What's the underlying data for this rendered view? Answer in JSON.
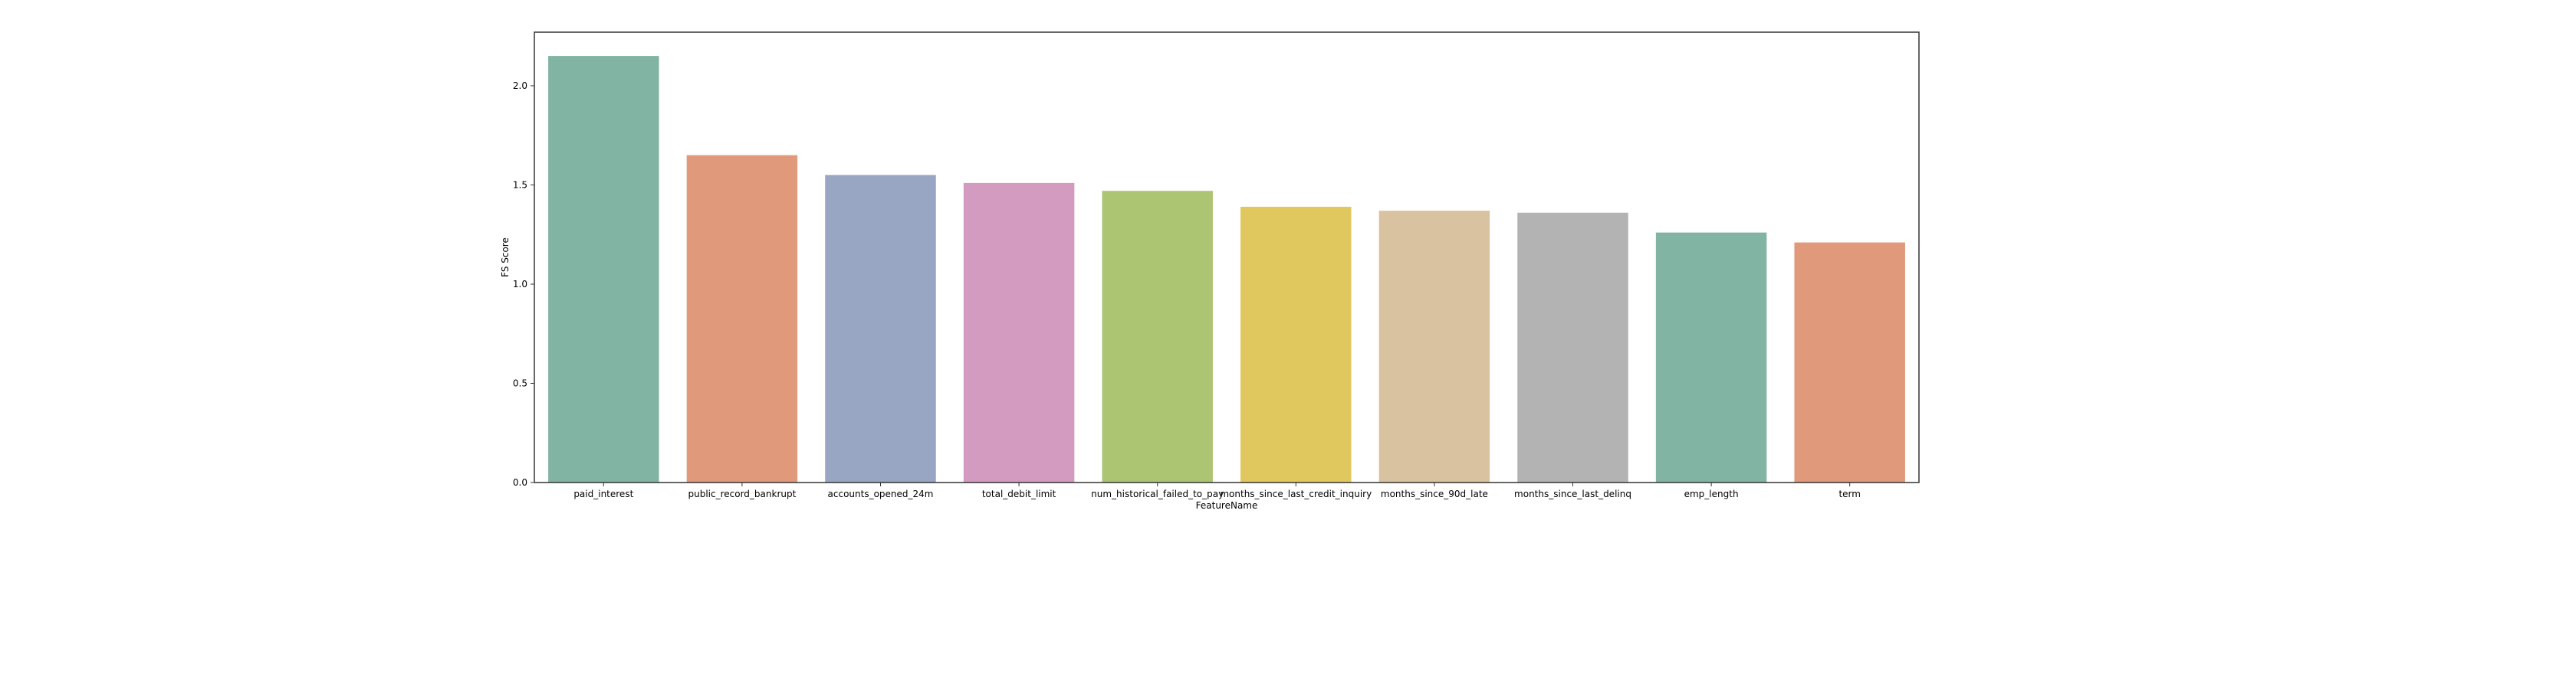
{
  "chart_data": {
    "type": "bar",
    "title": "",
    "xlabel": "FeatureName",
    "ylabel": "FS Score",
    "categories": [
      "paid_interest",
      "public_record_bankrupt",
      "accounts_opened_24m",
      "total_debit_limit",
      "num_historical_failed_to_pay",
      "months_since_last_credit_inquiry",
      "months_since_90d_late",
      "months_since_last_delinq",
      "emp_length",
      "term"
    ],
    "values": [
      2.15,
      1.65,
      1.55,
      1.51,
      1.47,
      1.39,
      1.37,
      1.36,
      1.26,
      1.21
    ],
    "colors": [
      "#81b4a2",
      "#e0997a",
      "#98a5c3",
      "#d39bbf",
      "#abc573",
      "#e0c85f",
      "#d9c2a0",
      "#b3b3b3",
      "#81b4a2",
      "#e0997a"
    ],
    "ylim": [
      0,
      2.27
    ],
    "yticks": [
      0.0,
      0.5,
      1.0,
      1.5,
      2.0
    ],
    "ytick_labels": [
      "0.0",
      "0.5",
      "1.0",
      "1.5",
      "2.0"
    ],
    "grid": false,
    "legend": "none"
  }
}
